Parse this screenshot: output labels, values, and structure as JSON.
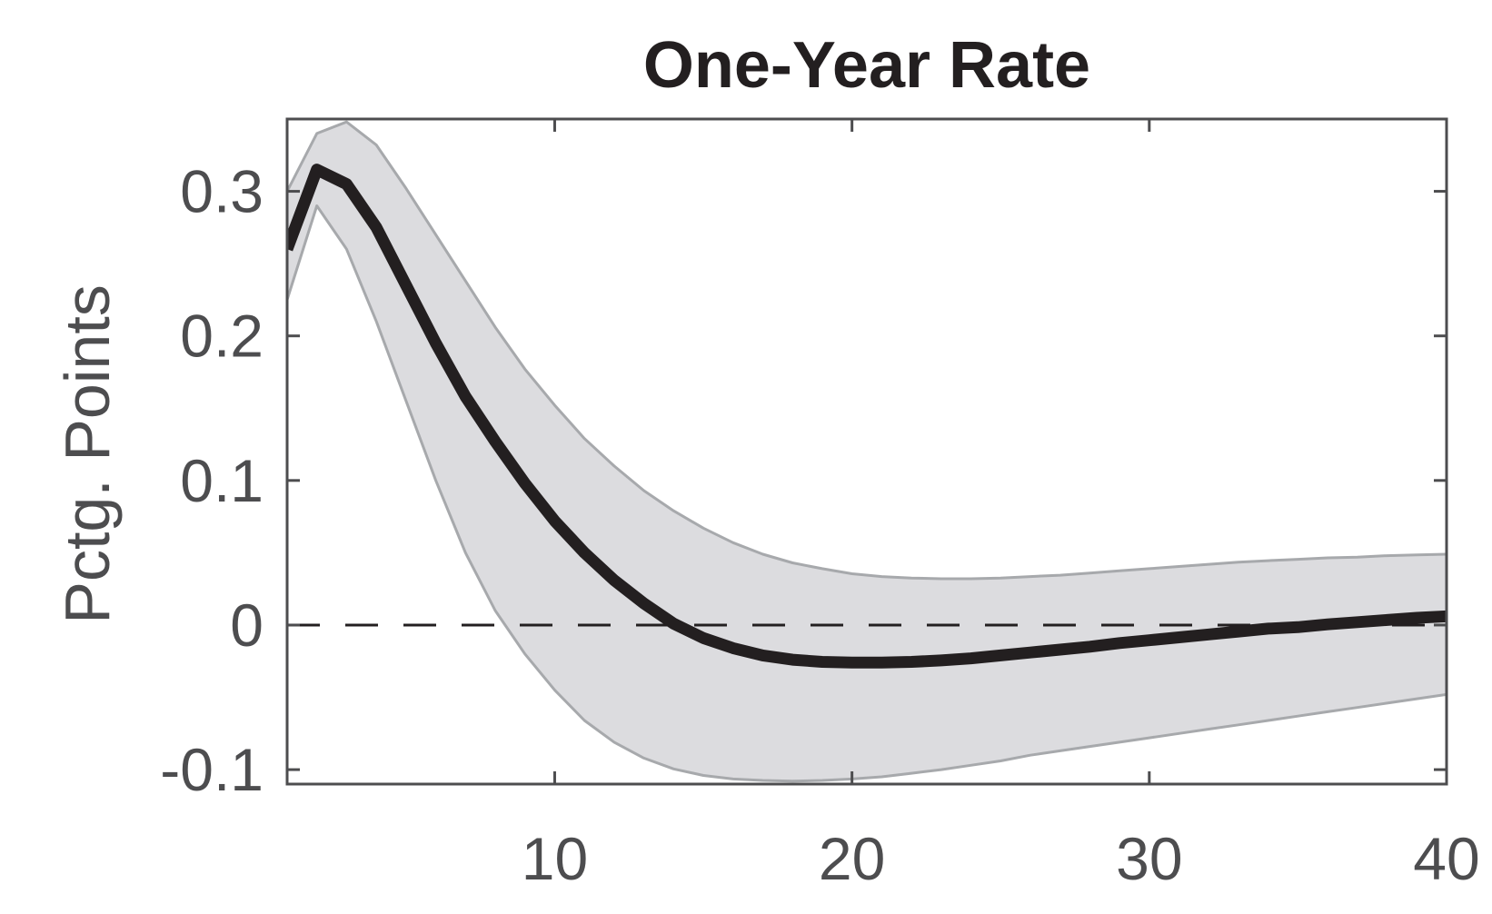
{
  "chart_data": {
    "type": "line",
    "title": "One-Year Rate",
    "xlabel": "",
    "ylabel": "Pctg. Points",
    "xlim": [
      1,
      40
    ],
    "ylim": [
      -0.11,
      0.35
    ],
    "xticks": [
      10,
      20,
      30,
      40
    ],
    "xtick_labels": [
      "10",
      "20",
      "30",
      "40"
    ],
    "yticks": [
      -0.1,
      0,
      0.1,
      0.2,
      0.3
    ],
    "ytick_labels": [
      "-0.1",
      "0",
      "0.1",
      "0.2",
      "0.3"
    ],
    "grid": false,
    "legend": "none",
    "reference_line": {
      "y": 0,
      "style": "dashed"
    },
    "x": [
      1,
      2,
      3,
      4,
      5,
      6,
      7,
      8,
      9,
      10,
      11,
      12,
      13,
      14,
      15,
      16,
      17,
      18,
      19,
      20,
      21,
      22,
      23,
      24,
      25,
      26,
      27,
      28,
      29,
      30,
      31,
      32,
      33,
      34,
      35,
      36,
      37,
      38,
      39,
      40
    ],
    "series": [
      {
        "role": "median",
        "values": [
          0.26,
          0.315,
          0.305,
          0.275,
          0.235,
          0.195,
          0.158,
          0.127,
          0.098,
          0.072,
          0.05,
          0.031,
          0.015,
          0.001,
          -0.009,
          -0.016,
          -0.021,
          -0.024,
          -0.0255,
          -0.026,
          -0.026,
          -0.0255,
          -0.0245,
          -0.023,
          -0.021,
          -0.019,
          -0.017,
          -0.015,
          -0.0125,
          -0.0105,
          -0.0085,
          -0.0065,
          -0.0045,
          -0.0025,
          -0.0015,
          0.0005,
          0.002,
          0.0035,
          0.005,
          0.006
        ],
        "color": "#231f20"
      },
      {
        "role": "upper-band",
        "values": [
          0.3,
          0.34,
          0.348,
          0.332,
          0.302,
          0.27,
          0.238,
          0.206,
          0.177,
          0.152,
          0.129,
          0.11,
          0.093,
          0.079,
          0.067,
          0.057,
          0.049,
          0.043,
          0.039,
          0.0355,
          0.0335,
          0.0325,
          0.032,
          0.032,
          0.0325,
          0.0335,
          0.0345,
          0.036,
          0.0375,
          0.039,
          0.0405,
          0.042,
          0.0435,
          0.0445,
          0.0455,
          0.0465,
          0.047,
          0.048,
          0.0485,
          0.049
        ],
        "color": "#a7a9ac"
      },
      {
        "role": "lower-band",
        "values": [
          0.225,
          0.29,
          0.26,
          0.21,
          0.155,
          0.1,
          0.05,
          0.01,
          -0.02,
          -0.045,
          -0.066,
          -0.081,
          -0.092,
          -0.0995,
          -0.104,
          -0.1065,
          -0.1075,
          -0.108,
          -0.1075,
          -0.1065,
          -0.105,
          -0.1025,
          -0.1,
          -0.097,
          -0.094,
          -0.09,
          -0.087,
          -0.084,
          -0.081,
          -0.078,
          -0.075,
          -0.072,
          -0.069,
          -0.066,
          -0.063,
          -0.06,
          -0.057,
          -0.054,
          -0.051,
          -0.048
        ],
        "color": "#a7a9ac"
      }
    ],
    "band_fill": "#dcdcdf",
    "axis_color": "#4d4d4f"
  }
}
